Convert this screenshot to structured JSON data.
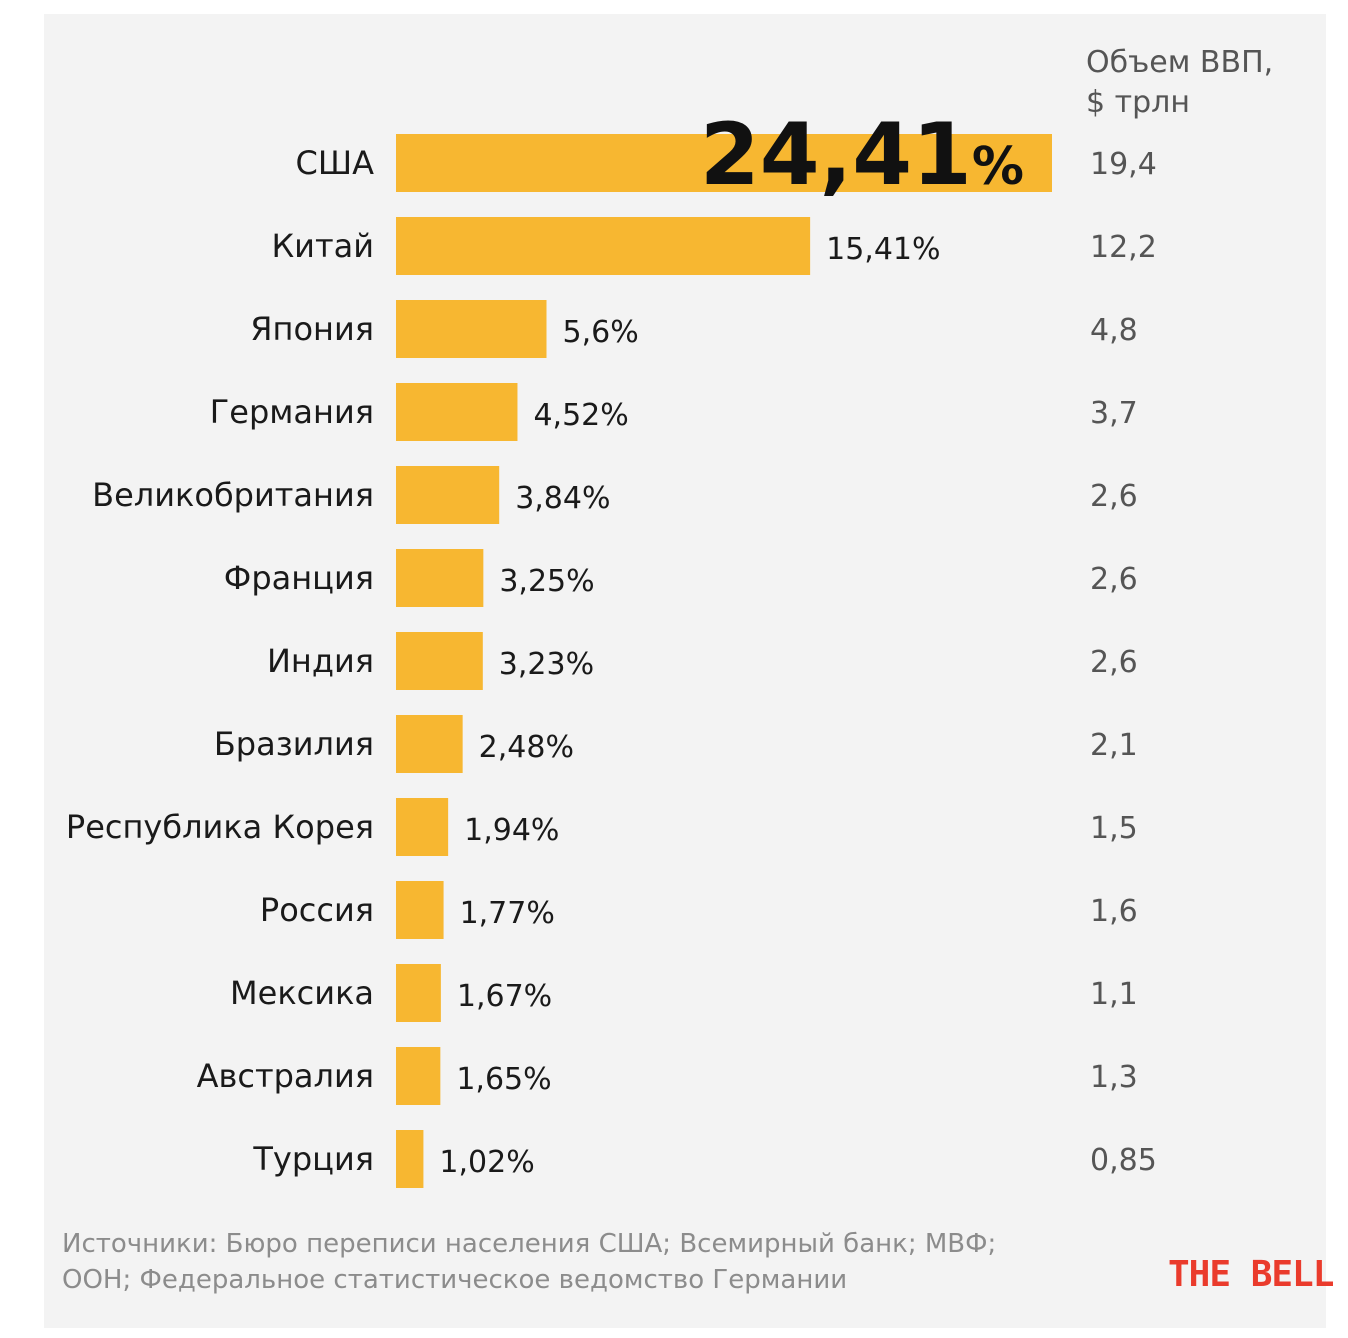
{
  "chart_data": {
    "type": "bar",
    "orientation": "horizontal",
    "categories": [
      "США",
      "Китай",
      "Япония",
      "Германия",
      "Великобритания",
      "Франция",
      "Индия",
      "Бразилия",
      "Республика Корея",
      "Россия",
      "Мексика",
      "Австралия",
      "Турция"
    ],
    "values": [
      24.41,
      15.41,
      5.6,
      4.52,
      3.84,
      3.25,
      3.23,
      2.48,
      1.94,
      1.77,
      1.67,
      1.65,
      1.02
    ],
    "value_labels": [
      "24,41%",
      "15,41%",
      "5,6%",
      "4,52%",
      "3,84%",
      "3,25%",
      "3,23%",
      "2,48%",
      "1,94%",
      "1,77%",
      "1,67%",
      "1,65%",
      "1,02%"
    ],
    "gdp_header": [
      "Объем ВВП,",
      "$ трлн"
    ],
    "gdp_values": [
      "19,4",
      "12,2",
      "4,8",
      "3,7",
      "2,6",
      "2,6",
      "2,6",
      "2,1",
      "1,5",
      "1,6",
      "1,1",
      "1,3",
      "0,85"
    ],
    "title": "",
    "xlabel": "",
    "ylabel": "",
    "grid": false,
    "legend": "none",
    "colors": {
      "bar": "#f7b731",
      "gdp_text": "#555555",
      "label_text": "#1a1a1a"
    }
  },
  "footer": {
    "sources": "Источники:  Бюро переписи населения США; Всемирный банк; МВФ; ООН; Федеральное статистическое ведомство Германии",
    "brand": "THE BELL",
    "brand_color": "#ea3b2c"
  }
}
